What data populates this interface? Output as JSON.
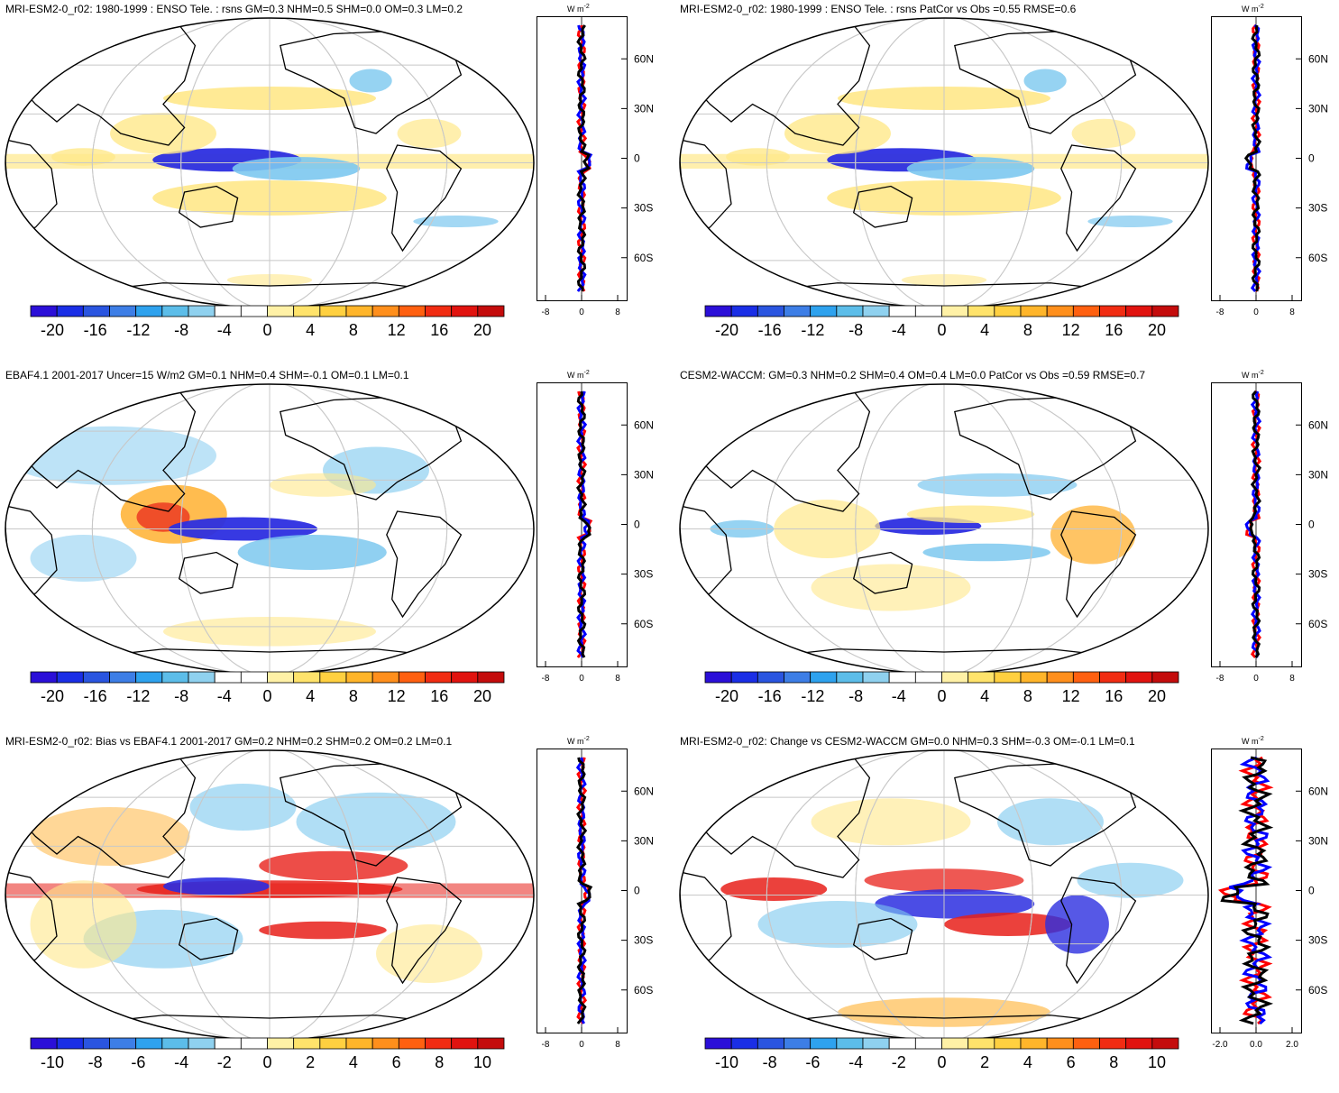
{
  "panels": [
    {
      "title": "MRI-ESM2-0_r02: 1980-1999 : ENSO Tele. : rsns GM=0.3 NHM=0.5 SHM=0.0 OM=0.3 LM=0.2",
      "cbar_labels": [
        "-20",
        "-16",
        "-12",
        "-8",
        "-4",
        "0",
        "4",
        "8",
        "12",
        "16",
        "20"
      ],
      "prof_x_ticks": [
        "-8",
        "0",
        "8"
      ],
      "variant": "A"
    },
    {
      "title": "MRI-ESM2-0_r02: 1980-1999 : ENSO Tele. : rsns PatCor vs Obs =0.55 RMSE=0.6",
      "cbar_labels": [
        "-20",
        "-16",
        "-12",
        "-8",
        "-4",
        "0",
        "4",
        "8",
        "12",
        "16",
        "20"
      ],
      "prof_x_ticks": [
        "-8",
        "0",
        "8"
      ],
      "variant": "A"
    },
    {
      "title": "EBAF4.1 2001-2017 Uncer=15 W/m2 GM=0.1 NHM=0.4 SHM=-0.1 OM=0.1 LM=0.1",
      "cbar_labels": [
        "-20",
        "-16",
        "-12",
        "-8",
        "-4",
        "0",
        "4",
        "8",
        "12",
        "16",
        "20"
      ],
      "prof_x_ticks": [
        "-8",
        "0",
        "8"
      ],
      "variant": "B"
    },
    {
      "title": "CESM2-WACCM: GM=0.3 NHM=0.2 SHM=0.4 OM=0.4 LM=0.0 PatCor vs Obs =0.59 RMSE=0.7",
      "cbar_labels": [
        "-20",
        "-16",
        "-12",
        "-8",
        "-4",
        "0",
        "4",
        "8",
        "12",
        "16",
        "20"
      ],
      "prof_x_ticks": [
        "-8",
        "0",
        "8"
      ],
      "variant": "C"
    },
    {
      "title": "MRI-ESM2-0_r02: Bias vs EBAF4.1 2001-2017 GM=0.2 NHM=0.2 SHM=0.2 OM=0.2 LM=0.1",
      "cbar_labels": [
        "-10",
        "-8",
        "-6",
        "-4",
        "-2",
        "0",
        "2",
        "4",
        "6",
        "8",
        "10"
      ],
      "prof_x_ticks": [
        "-8",
        "0",
        "8"
      ],
      "variant": "D"
    },
    {
      "title": "MRI-ESM2-0_r02: Change vs CESM2-WACCM GM=0.0 NHM=0.3 SHM=-0.3 OM=-0.1 LM=0.1",
      "cbar_labels": [
        "-10",
        "-8",
        "-6",
        "-4",
        "-2",
        "0",
        "2",
        "4",
        "6",
        "8",
        "10"
      ],
      "prof_x_ticks": [
        "-2.0",
        "0.0",
        "2.0"
      ],
      "variant": "E"
    }
  ],
  "lat_labels": [
    "60N",
    "30N",
    "0",
    "30S",
    "60S"
  ],
  "prof_unit": "W m",
  "prof_unit_sup": "-2",
  "colors": {
    "scale": [
      "#2b0fd8",
      "#1a2ee6",
      "#2a55e0",
      "#3d7ee6",
      "#2ea2ee",
      "#5cbde9",
      "#8fd1ef",
      "#ffffff",
      "#ffffff",
      "#fff1a6",
      "#ffe36b",
      "#ffd040",
      "#ffb52a",
      "#ff8f1c",
      "#ff6010",
      "#f12c12",
      "#e1130f",
      "#c40c0c"
    ],
    "line_red": "#ff0000",
    "line_blue": "#0000ff",
    "line_black": "#000000"
  }
}
